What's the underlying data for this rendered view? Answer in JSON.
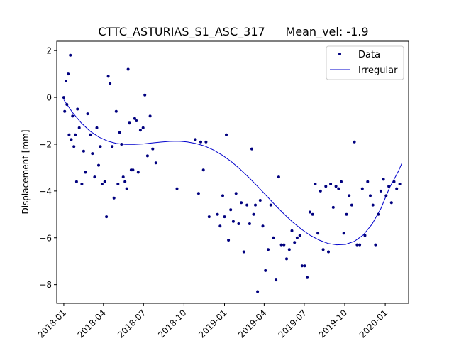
{
  "chart_data": {
    "type": "scatter",
    "title_left": "CTTC_ASTURIAS_S1_ASC_317",
    "title_right": "Mean_vel: -1.9",
    "xlabel": "",
    "ylabel": "Displacement [mm]",
    "x_type": "date",
    "xlim": [
      "2017-12-16",
      "2020-02-23"
    ],
    "ylim": [
      -8.8,
      2.4
    ],
    "xticks": [
      "2018-01-01",
      "2018-04-01",
      "2018-07-01",
      "2018-10-01",
      "2019-01-01",
      "2019-04-01",
      "2019-07-01",
      "2019-10-01",
      "2020-01-01"
    ],
    "xtick_labels": [
      "2018-01",
      "2018-04",
      "2018-07",
      "2018-10",
      "2019-01",
      "2019-04",
      "2019-07",
      "2019-10",
      "2020-01"
    ],
    "yticks": [
      2,
      0,
      -2,
      -4,
      -6,
      -8
    ],
    "ytick_labels": [
      "2",
      "0",
      "−2",
      "−4",
      "−6",
      "−8"
    ],
    "grid": false,
    "legend_position": "top-right",
    "series": [
      {
        "name": "Data",
        "style": "points",
        "color": "#00007f",
        "x": [
          "2018-01-01",
          "2018-01-03",
          "2018-01-06",
          "2018-01-08",
          "2018-01-11",
          "2018-01-13",
          "2018-01-16",
          "2018-01-18",
          "2018-01-21",
          "2018-01-24",
          "2018-01-27",
          "2018-01-30",
          "2018-02-01",
          "2018-02-05",
          "2018-02-11",
          "2018-02-15",
          "2018-02-19",
          "2018-02-24",
          "2018-03-02",
          "2018-03-07",
          "2018-03-12",
          "2018-03-17",
          "2018-03-21",
          "2018-03-25",
          "2018-03-29",
          "2018-04-04",
          "2018-04-08",
          "2018-04-12",
          "2018-04-16",
          "2018-04-21",
          "2018-04-25",
          "2018-04-30",
          "2018-05-04",
          "2018-05-08",
          "2018-05-12",
          "2018-05-16",
          "2018-05-20",
          "2018-05-24",
          "2018-05-27",
          "2018-05-30",
          "2018-06-03",
          "2018-06-07",
          "2018-06-11",
          "2018-06-15",
          "2018-06-19",
          "2018-06-24",
          "2018-06-30",
          "2018-07-04",
          "2018-07-10",
          "2018-07-16",
          "2018-07-22",
          "2018-07-29",
          "2018-09-15",
          "2018-10-27",
          "2018-11-03",
          "2018-11-08",
          "2018-11-14",
          "2018-11-20",
          "2018-11-27",
          "2018-12-16",
          "2018-12-22",
          "2018-12-28",
          "2019-01-01",
          "2019-01-05",
          "2019-01-10",
          "2019-01-15",
          "2019-01-21",
          "2019-01-27",
          "2019-02-02",
          "2019-02-08",
          "2019-02-14",
          "2019-02-21",
          "2019-02-27",
          "2019-03-04",
          "2019-03-08",
          "2019-03-12",
          "2019-03-17",
          "2019-03-23",
          "2019-03-29",
          "2019-04-04",
          "2019-04-10",
          "2019-04-16",
          "2019-04-22",
          "2019-04-28",
          "2019-05-04",
          "2019-05-10",
          "2019-05-16",
          "2019-05-22",
          "2019-05-28",
          "2019-06-03",
          "2019-06-09",
          "2019-06-15",
          "2019-06-21",
          "2019-06-26",
          "2019-07-02",
          "2019-07-08",
          "2019-07-14",
          "2019-07-20",
          "2019-07-26",
          "2019-08-01",
          "2019-08-07",
          "2019-08-13",
          "2019-08-19",
          "2019-08-25",
          "2019-08-30",
          "2019-09-05",
          "2019-09-11",
          "2019-09-17",
          "2019-09-23",
          "2019-09-29",
          "2019-10-05",
          "2019-10-11",
          "2019-10-17",
          "2019-10-23",
          "2019-10-29",
          "2019-11-04",
          "2019-11-10",
          "2019-11-16",
          "2019-11-22",
          "2019-11-28",
          "2019-12-04",
          "2019-12-10",
          "2019-12-16",
          "2019-12-22",
          "2019-12-28",
          "2020-01-03",
          "2020-01-09",
          "2020-01-15",
          "2020-01-21",
          "2020-01-27",
          "2020-02-03"
        ],
        "y": [
          0.0,
          -0.6,
          0.7,
          -0.3,
          1.0,
          -1.6,
          1.8,
          -1.8,
          -0.8,
          -2.1,
          -1.6,
          -3.6,
          -0.5,
          -1.3,
          -3.7,
          -2.3,
          -3.2,
          -0.7,
          -1.6,
          -2.4,
          -3.4,
          -1.3,
          -2.9,
          -2.1,
          -3.7,
          -3.6,
          -5.1,
          0.9,
          0.6,
          -2.1,
          -4.3,
          -0.6,
          -3.7,
          -1.5,
          -2.0,
          -3.4,
          -3.6,
          -3.9,
          1.2,
          -1.1,
          -3.1,
          -3.1,
          -0.9,
          -1.0,
          -3.2,
          -1.4,
          -1.3,
          0.1,
          -2.5,
          -0.8,
          -2.2,
          -2.8,
          -3.9,
          -1.8,
          -4.1,
          -1.9,
          -3.1,
          -1.9,
          -5.1,
          -5.0,
          -5.5,
          -4.2,
          -5.1,
          -1.6,
          -6.1,
          -4.8,
          -5.3,
          -4.1,
          -5.4,
          -4.5,
          -6.6,
          -4.6,
          -5.4,
          -2.2,
          -5.0,
          -4.6,
          -8.3,
          -4.4,
          -5.5,
          -7.4,
          -6.5,
          -4.6,
          -6.0,
          -7.8,
          -3.4,
          -6.3,
          -6.3,
          -6.9,
          -6.5,
          -5.7,
          -6.2,
          -6.0,
          -5.9,
          -7.2,
          -7.2,
          -7.7,
          -4.9,
          -5.0,
          -3.7,
          -5.8,
          -4.0,
          -6.5,
          -3.8,
          -6.6,
          -3.7,
          -4.7,
          -3.8,
          -3.9,
          -3.6,
          -5.8,
          -5.0,
          -4.2,
          -4.6,
          -1.9,
          -6.3,
          -6.3,
          -3.9,
          -5.9,
          -3.6,
          -4.2,
          -4.6,
          -6.3,
          -5.0,
          -4.0,
          -3.5,
          -4.2,
          -3.8,
          -4.5,
          -3.6,
          -3.9,
          -3.7
        ]
      },
      {
        "name": "Irregular",
        "style": "line",
        "color": "#0000cc",
        "x": [
          "2018-01-01",
          "2018-01-21",
          "2018-02-10",
          "2018-03-02",
          "2018-03-22",
          "2018-04-11",
          "2018-05-01",
          "2018-05-21",
          "2018-06-10",
          "2018-06-30",
          "2018-07-20",
          "2018-08-09",
          "2018-08-29",
          "2018-09-18",
          "2018-10-08",
          "2018-10-28",
          "2018-11-17",
          "2018-12-07",
          "2018-12-27",
          "2019-01-16",
          "2019-02-05",
          "2019-02-25",
          "2019-03-17",
          "2019-04-06",
          "2019-04-26",
          "2019-05-16",
          "2019-06-05",
          "2019-06-25",
          "2019-07-15",
          "2019-08-04",
          "2019-08-24",
          "2019-09-13",
          "2019-10-03",
          "2019-10-23",
          "2019-11-12",
          "2019-12-02",
          "2019-12-22",
          "2020-01-11",
          "2020-01-31",
          "2020-02-08"
        ],
        "y": [
          -0.1,
          -0.65,
          -1.1,
          -1.45,
          -1.7,
          -1.87,
          -1.97,
          -2.01,
          -2.01,
          -1.99,
          -1.95,
          -1.91,
          -1.88,
          -1.87,
          -1.9,
          -1.97,
          -2.08,
          -2.25,
          -2.47,
          -2.74,
          -3.06,
          -3.42,
          -3.8,
          -4.2,
          -4.6,
          -4.98,
          -5.33,
          -5.64,
          -5.9,
          -6.1,
          -6.24,
          -6.3,
          -6.28,
          -6.15,
          -5.88,
          -5.42,
          -4.75,
          -3.85,
          -3.15,
          -2.8
        ]
      }
    ]
  }
}
